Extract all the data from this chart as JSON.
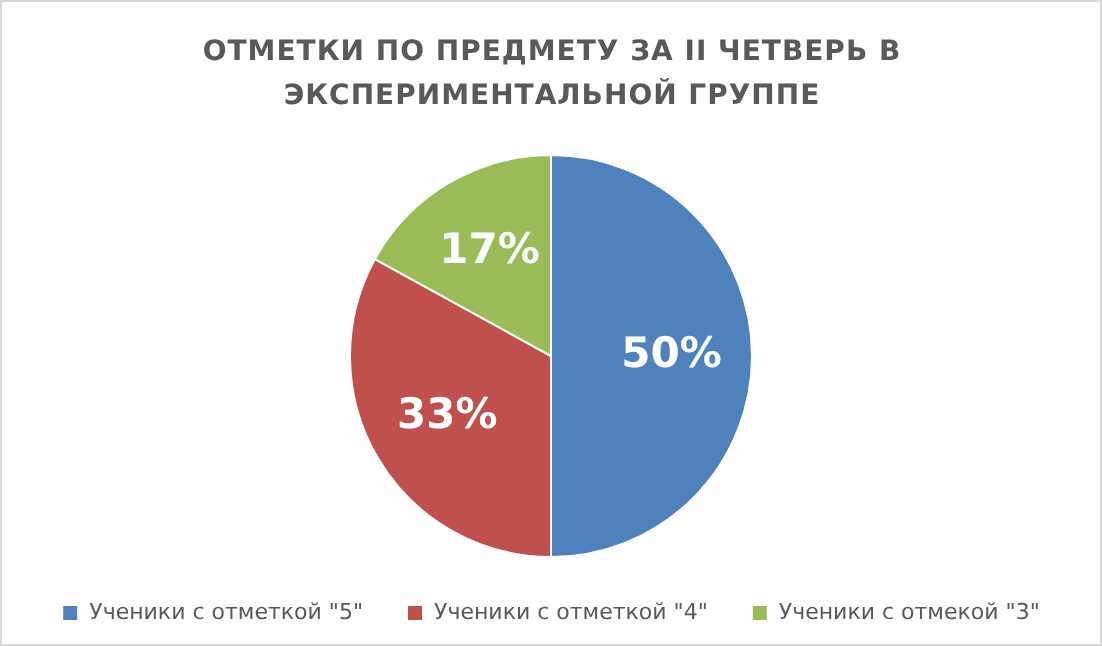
{
  "chart_data": {
    "type": "pie",
    "title": "ОТМЕТКИ ПО ПРЕДМЕТУ ЗА II ЧЕТВЕРЬ В ЭКСПЕРИМЕНТАЛЬНОЙ ГРУППЕ",
    "categories": [
      "Ученики с отметкой \"5\"",
      "Ученики с отметкой \"4\"",
      "Ученики с отмекой \"3\""
    ],
    "values": [
      50,
      33,
      17
    ],
    "colors": [
      "#4f81bd",
      "#c0504d",
      "#9bbb59"
    ],
    "value_labels": [
      "50%",
      "33%",
      "17%"
    ],
    "legend": "bottom"
  }
}
